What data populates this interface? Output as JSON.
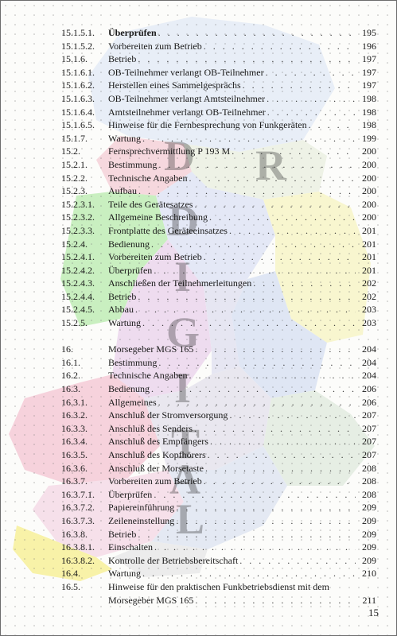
{
  "watermark": {
    "letters": [
      "D",
      "R",
      "D",
      "I",
      "G",
      "I",
      "T",
      "A",
      "L"
    ]
  },
  "page_number": "15",
  "toc": [
    {
      "num": "15.1.5.1.",
      "title": "Überprüfen",
      "page": "195",
      "bold": true
    },
    {
      "num": "15.1.5.2.",
      "title": "Vorbereiten zum Betrieb",
      "page": "196"
    },
    {
      "num": "15.1.6.",
      "title": "Betrieb",
      "page": "197"
    },
    {
      "num": "15.1.6.1.",
      "title": "OB-Teilnehmer verlangt OB-Teilnehmer",
      "page": "197"
    },
    {
      "num": "15.1.6.2.",
      "title": "Herstellen eines Sammelgesprächs",
      "page": "197"
    },
    {
      "num": "15.1.6.3.",
      "title": "OB-Teilnehmer verlangt Amtsteilnehmer",
      "page": "198"
    },
    {
      "num": "15.1.6.4.",
      "title": "Amtsteilnehmer verlangt OB-Teilnehmer",
      "page": "198"
    },
    {
      "num": "15.1.6.5.",
      "title": "Hinweise für die Fernbesprechung von Funkgeräten",
      "page": "198"
    },
    {
      "num": "15.1.7.",
      "title": "Wartung",
      "page": "199"
    },
    {
      "num": "15.2.",
      "title": "Fernsprechvermittlung P 193 M",
      "page": "200"
    },
    {
      "num": "15.2.1.",
      "title": "Bestimmung",
      "page": "200"
    },
    {
      "num": "15.2.2.",
      "title": "Technische Angaben",
      "page": "200"
    },
    {
      "num": "15.2.3.",
      "title": "Aufbau",
      "page": "200"
    },
    {
      "num": "15.2.3.1.",
      "title": "Teile des Gerätesatzes",
      "page": "200"
    },
    {
      "num": "15.2.3.2.",
      "title": "Allgemeine Beschreibung",
      "page": "200"
    },
    {
      "num": "15.2.3.3.",
      "title": "Frontplatte des Geräteeinsatzes",
      "page": "201"
    },
    {
      "num": "15.2.4.",
      "title": "Bedienung",
      "page": "201"
    },
    {
      "num": "15.2.4.1.",
      "title": "Vorbereiten zum Betrieb",
      "page": "201"
    },
    {
      "num": "15.2.4.2.",
      "title": "Überprüfen",
      "page": "201"
    },
    {
      "num": "15.2.4.3.",
      "title": "Anschließen der Teilnehmerleitungen",
      "page": "202"
    },
    {
      "num": "15.2.4.4.",
      "title": "Betrieb",
      "page": "202"
    },
    {
      "num": "15.2.4.5.",
      "title": "Abbau",
      "page": "203"
    },
    {
      "num": "15.2.5.",
      "title": "Wartung",
      "page": "203"
    },
    {
      "gap": true
    },
    {
      "num": "16.",
      "title": "Morsegeber MGS 165",
      "page": "204"
    },
    {
      "num": "16.1.",
      "title": "Bestimmung",
      "page": "204"
    },
    {
      "num": "16.2.",
      "title": "Technische Angaben",
      "page": "204"
    },
    {
      "num": "16.3.",
      "title": "Bedienung",
      "page": "206"
    },
    {
      "num": "16.3.1.",
      "title": "Allgemeines",
      "page": "206"
    },
    {
      "num": "16.3.2.",
      "title": "Anschluß der Stromversorgung",
      "page": "207"
    },
    {
      "num": "16.3.3.",
      "title": "Anschluß des Senders",
      "page": "207"
    },
    {
      "num": "16.3.4.",
      "title": "Anschluß des Empfängers",
      "page": "207"
    },
    {
      "num": "16.3.5.",
      "title": "Anschluß des Kopfhörers",
      "page": "207"
    },
    {
      "num": "16.3.6.",
      "title": "Anschluß der Morsetaste",
      "page": "208"
    },
    {
      "num": "16.3.7.",
      "title": "Vorbereiten zum Betrieb",
      "page": "208"
    },
    {
      "num": "16.3.7.1.",
      "title": "Überprüfen",
      "page": "208"
    },
    {
      "num": "16.3.7.2.",
      "title": "Papiereinführung",
      "page": "209"
    },
    {
      "num": "16.3.7.3.",
      "title": "Zeileneinstellung",
      "page": "209"
    },
    {
      "num": "16.3.8.",
      "title": "Betrieb",
      "page": "209"
    },
    {
      "num": "16.3.8.1.",
      "title": "Einschalten",
      "page": "209"
    },
    {
      "num": "16.3.8.2.",
      "title": "Kontrolle der Betriebsbereitschaft",
      "page": "209"
    },
    {
      "num": "16.4.",
      "title": "Wartung",
      "page": "210"
    },
    {
      "num": "16.5.",
      "title": "Hinweise für den praktischen Funkbetriebsdienst mit dem",
      "page": "",
      "noleader": true
    },
    {
      "num": "",
      "title": "Morsegeber MGS 165",
      "page": "211"
    }
  ]
}
